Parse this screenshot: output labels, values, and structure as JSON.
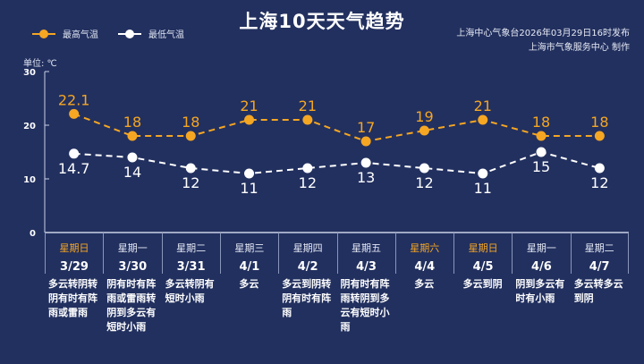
{
  "title": "上海10天天气趋势",
  "issuer": {
    "line1": "上海中心气象台2026年03月29日16时发布",
    "line2": "上海市气象服务中心  制作"
  },
  "unit_label": "单位: ℃",
  "colors": {
    "background": "#22305f",
    "max": "#f5a623",
    "min": "#ffffff",
    "weekend": "#f5a623"
  },
  "chart_data": {
    "type": "line",
    "ylim": [
      0,
      30
    ],
    "yticks": [
      "0",
      "10",
      "20",
      "30"
    ],
    "legend": "top-left",
    "categories": [
      "3/29",
      "3/30",
      "3/31",
      "4/1",
      "4/2",
      "4/3",
      "4/4",
      "4/5",
      "4/6",
      "4/7"
    ],
    "series": [
      {
        "name": "最高气温",
        "values": [
          22.1,
          18,
          18,
          21,
          21,
          17,
          19,
          21,
          18,
          18
        ],
        "labels": [
          "22.1",
          "18",
          "18",
          "21",
          "21",
          "17",
          "19",
          "21",
          "18",
          "18"
        ]
      },
      {
        "name": "最低气温",
        "values": [
          14.7,
          14,
          12,
          11,
          12,
          13,
          12,
          11,
          15,
          12
        ],
        "labels": [
          "14.7",
          "14",
          "12",
          "11",
          "12",
          "13",
          "12",
          "11",
          "15",
          "12"
        ]
      }
    ]
  },
  "days": [
    {
      "weekday": "星期日",
      "date": "3/29",
      "weekend": true,
      "weather": "多云转阴转阴有时有阵雨或雷雨"
    },
    {
      "weekday": "星期一",
      "date": "3/30",
      "weekend": false,
      "weather": "阴有时有阵雨或雷雨转阴到多云有短时小雨"
    },
    {
      "weekday": "星期二",
      "date": "3/31",
      "weekend": false,
      "weather": "多云转阴有短时小雨"
    },
    {
      "weekday": "星期三",
      "date": "4/1",
      "weekend": false,
      "weather": "多云"
    },
    {
      "weekday": "星期四",
      "date": "4/2",
      "weekend": false,
      "weather": "多云到阴转阴有时有阵雨"
    },
    {
      "weekday": "星期五",
      "date": "4/3",
      "weekend": false,
      "weather": "阴有时有阵雨转阴到多云有短时小雨"
    },
    {
      "weekday": "星期六",
      "date": "4/4",
      "weekend": true,
      "weather": "多云"
    },
    {
      "weekday": "星期日",
      "date": "4/5",
      "weekend": true,
      "weather": "多云到阴"
    },
    {
      "weekday": "星期一",
      "date": "4/6",
      "weekend": false,
      "weather": "阴到多云有时有小雨"
    },
    {
      "weekday": "星期二",
      "date": "4/7",
      "weekend": false,
      "weather": "多云转多云到阴"
    }
  ]
}
